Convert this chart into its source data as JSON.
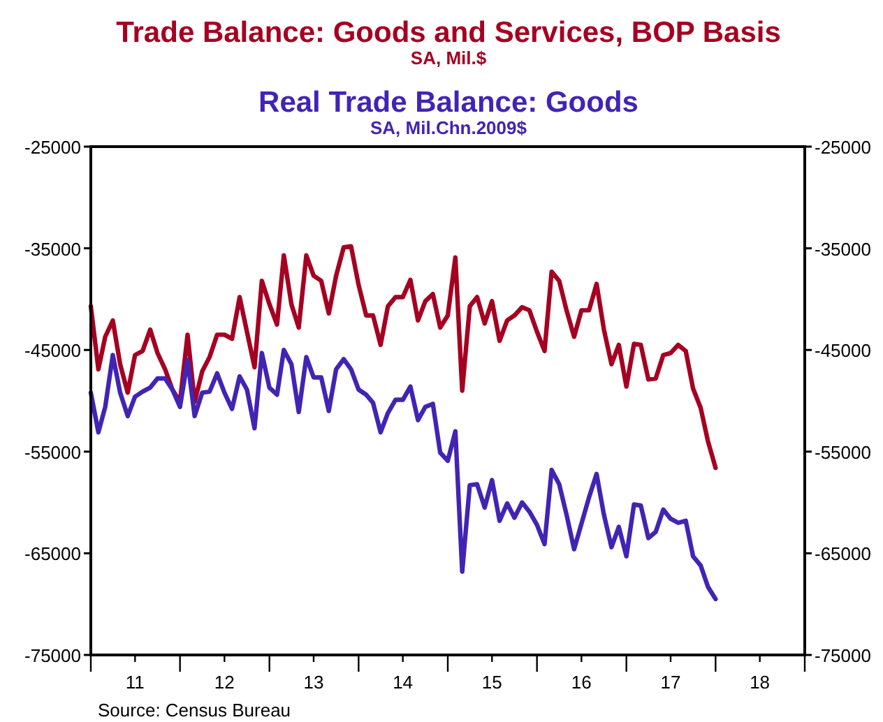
{
  "chart_data": {
    "type": "line",
    "x": [
      "2011-01",
      "2011-02",
      "2011-03",
      "2011-04",
      "2011-05",
      "2011-06",
      "2011-07",
      "2011-08",
      "2011-09",
      "2011-10",
      "2011-11",
      "2011-12",
      "2012-01",
      "2012-02",
      "2012-03",
      "2012-04",
      "2012-05",
      "2012-06",
      "2012-07",
      "2012-08",
      "2012-09",
      "2012-10",
      "2012-11",
      "2012-12",
      "2013-01",
      "2013-02",
      "2013-03",
      "2013-04",
      "2013-05",
      "2013-06",
      "2013-07",
      "2013-08",
      "2013-09",
      "2013-10",
      "2013-11",
      "2013-12",
      "2014-01",
      "2014-02",
      "2014-03",
      "2014-04",
      "2014-05",
      "2014-06",
      "2014-07",
      "2014-08",
      "2014-09",
      "2014-10",
      "2014-11",
      "2014-12",
      "2015-01",
      "2015-02",
      "2015-03",
      "2015-04",
      "2015-05",
      "2015-06",
      "2015-07",
      "2015-08",
      "2015-09",
      "2015-10",
      "2015-11",
      "2015-12",
      "2016-01",
      "2016-02",
      "2016-03",
      "2016-04",
      "2016-05",
      "2016-06",
      "2016-07",
      "2016-08",
      "2016-09",
      "2016-10",
      "2016-11",
      "2016-12",
      "2017-01",
      "2017-02",
      "2017-03",
      "2017-04",
      "2017-05",
      "2017-06",
      "2017-07",
      "2017-08",
      "2017-09",
      "2017-10",
      "2017-11",
      "2017-12",
      "2018-01"
    ],
    "series": [
      {
        "name": "Trade Balance:  Goods and Services, BOP Basis",
        "color": "#a50021",
        "values": [
          -40700,
          -46900,
          -43700,
          -42100,
          -46400,
          -49200,
          -45500,
          -45100,
          -43000,
          -45300,
          -46900,
          -48900,
          -50100,
          -43500,
          -50100,
          -47100,
          -45700,
          -43500,
          -43500,
          -43900,
          -39800,
          -43200,
          -46700,
          -38200,
          -40500,
          -42500,
          -35700,
          -40500,
          -42800,
          -35700,
          -37700,
          -38200,
          -41400,
          -37700,
          -34900,
          -34800,
          -38600,
          -41600,
          -41600,
          -44500,
          -40700,
          -39800,
          -39800,
          -38100,
          -42100,
          -40200,
          -39500,
          -42800,
          -41600,
          -35900,
          -49000,
          -40700,
          -39800,
          -42400,
          -40200,
          -44100,
          -42100,
          -41600,
          -40800,
          -41100,
          -43200,
          -45100,
          -37300,
          -38200,
          -41100,
          -43700,
          -41100,
          -41100,
          -38500,
          -43000,
          -46400,
          -44500,
          -48600,
          -44400,
          -44500,
          -47900,
          -47800,
          -45500,
          -45300,
          -44500,
          -45100,
          -48800,
          -50700,
          -54000,
          -56600
        ]
      },
      {
        "name": "Real Trade Balance: Goods",
        "color": "#4224b4",
        "values": [
          -49200,
          -53100,
          -50600,
          -45500,
          -49200,
          -51500,
          -49600,
          -49100,
          -48700,
          -47800,
          -47800,
          -48900,
          -50600,
          -46000,
          -51500,
          -49200,
          -49100,
          -47300,
          -49200,
          -50800,
          -47600,
          -48900,
          -52700,
          -45300,
          -48700,
          -49400,
          -45000,
          -46400,
          -51100,
          -45700,
          -47700,
          -47700,
          -51000,
          -46900,
          -45900,
          -46900,
          -48900,
          -49400,
          -50200,
          -53100,
          -51200,
          -49900,
          -49900,
          -48600,
          -51900,
          -50600,
          -50300,
          -55100,
          -55900,
          -53000,
          -66800,
          -58300,
          -58200,
          -60500,
          -57800,
          -61800,
          -60100,
          -61500,
          -60000,
          -60900,
          -62200,
          -64100,
          -56800,
          -58200,
          -61200,
          -64600,
          -62100,
          -59500,
          -57200,
          -61200,
          -64400,
          -62400,
          -65300,
          -60200,
          -60300,
          -63500,
          -62900,
          -60700,
          -61600,
          -62000,
          -61800,
          -65300,
          -66200,
          -68300,
          -69500
        ]
      }
    ],
    "annotations": [
      "SA, Mil.$",
      "SA, Mil.Chn.2009$",
      "Source:  Census Bureau"
    ],
    "xlim": [
      "2011-01",
      "2019-01"
    ],
    "xticks": [
      {
        "value": "2011-01",
        "label": null
      },
      {
        "value": "2011-07",
        "label": "11"
      },
      {
        "value": "2012-01",
        "label": null
      },
      {
        "value": "2012-07",
        "label": "12"
      },
      {
        "value": "2013-01",
        "label": null
      },
      {
        "value": "2013-07",
        "label": "13"
      },
      {
        "value": "2014-01",
        "label": null
      },
      {
        "value": "2014-07",
        "label": "14"
      },
      {
        "value": "2015-01",
        "label": null
      },
      {
        "value": "2015-07",
        "label": "15"
      },
      {
        "value": "2016-01",
        "label": null
      },
      {
        "value": "2016-07",
        "label": "16"
      },
      {
        "value": "2017-01",
        "label": null
      },
      {
        "value": "2017-07",
        "label": "17"
      },
      {
        "value": "2018-01",
        "label": null
      },
      {
        "value": "2018-07",
        "label": "18"
      },
      {
        "value": "2019-01",
        "label": null
      }
    ],
    "ylim": [
      -75000,
      -25000
    ],
    "yticks": [
      -75000,
      -65000,
      -55000,
      -45000,
      -35000,
      -25000
    ],
    "y2lim": [
      -75000,
      -25000
    ],
    "y2ticks": [
      -75000,
      -65000,
      -55000,
      -45000,
      -35000,
      -25000
    ],
    "grid": false,
    "marker": "none",
    "line_style": "solid"
  }
}
